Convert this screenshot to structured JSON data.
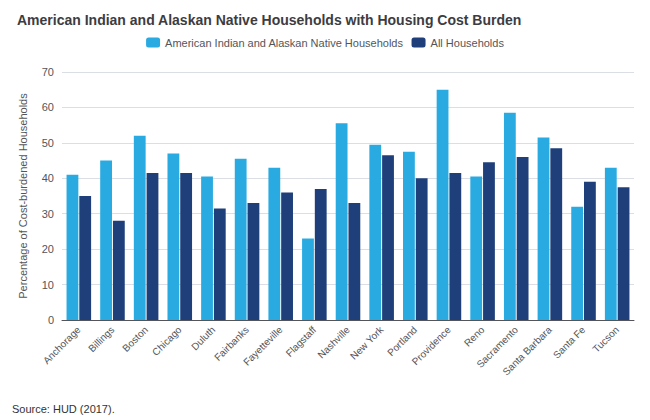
{
  "chart_data": {
    "type": "bar",
    "title": "American Indian and Alaskan Native Households with Housing Cost Burden",
    "ylabel": "Percentage of Cost-burdened Households",
    "annotations": [
      "Source: HUD (2017)."
    ],
    "categories": [
      "Anchorage",
      "Billings",
      "Boston",
      "Chicago",
      "Duluth",
      "Fairbanks",
      "Fayetteville",
      "Flagstaff",
      "Nashville",
      "New York",
      "Portland",
      "Providence",
      "Reno",
      "Sacramento",
      "Santa Barbara",
      "Santa Fe",
      "Tucson"
    ],
    "series": [
      {
        "name": "American Indian and Alaskan Native Households",
        "color": "#29ABE2",
        "values": [
          41,
          45,
          52,
          47,
          40.5,
          45.5,
          43,
          23,
          55.5,
          49.5,
          47.5,
          65,
          40.5,
          58.5,
          51.5,
          32,
          43
        ]
      },
      {
        "name": "All Households",
        "color": "#1F3F7A",
        "values": [
          35,
          28,
          41.5,
          41.5,
          31.5,
          33,
          36,
          37,
          33,
          46.5,
          40,
          41.5,
          44.5,
          46,
          48.5,
          39,
          37.5
        ]
      }
    ],
    "ylim": [
      0,
      70
    ],
    "yticks": [
      0,
      10,
      20,
      30,
      40,
      50,
      60,
      70
    ],
    "grid": true,
    "legend": "top"
  }
}
